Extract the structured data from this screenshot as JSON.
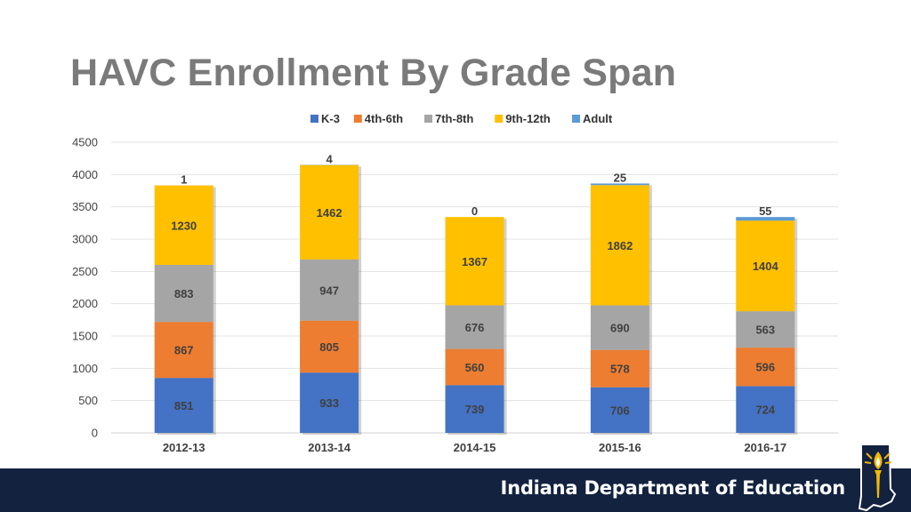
{
  "header": {
    "title": "HAVC Enrollment By Grade Span"
  },
  "footer": {
    "org_name": "Indiana Department of Education"
  },
  "colors": {
    "k3": "#4472c4",
    "g4_6": "#ed7d31",
    "g7_8": "#a5a5a5",
    "g9_12": "#ffc000",
    "adult": "#5b9bd5",
    "footer_bg": "#12223f",
    "title_text": "#7a7a7a"
  },
  "chart_data": {
    "type": "bar",
    "stacked": true,
    "title": "",
    "xlabel": "",
    "ylabel": "",
    "ylim": [
      0,
      4500
    ],
    "yticks": [
      0,
      500,
      1000,
      1500,
      2000,
      2500,
      3000,
      3500,
      4000,
      4500
    ],
    "grid": true,
    "legend_position": "top",
    "categories": [
      "2012-13",
      "2013-14",
      "2014-15",
      "2015-16",
      "2016-17"
    ],
    "series": [
      {
        "name": "K-3",
        "color": "#4472c4",
        "values": [
          851,
          933,
          739,
          706,
          724
        ]
      },
      {
        "name": "4th-6th",
        "color": "#ed7d31",
        "values": [
          867,
          805,
          560,
          578,
          596
        ]
      },
      {
        "name": "7th-8th",
        "color": "#a5a5a5",
        "values": [
          883,
          947,
          676,
          690,
          563
        ]
      },
      {
        "name": "9th-12th",
        "color": "#ffc000",
        "values": [
          1230,
          1462,
          1367,
          1862,
          1404
        ]
      },
      {
        "name": "Adult",
        "color": "#5b9bd5",
        "values": [
          1,
          4,
          0,
          25,
          55
        ]
      }
    ]
  }
}
